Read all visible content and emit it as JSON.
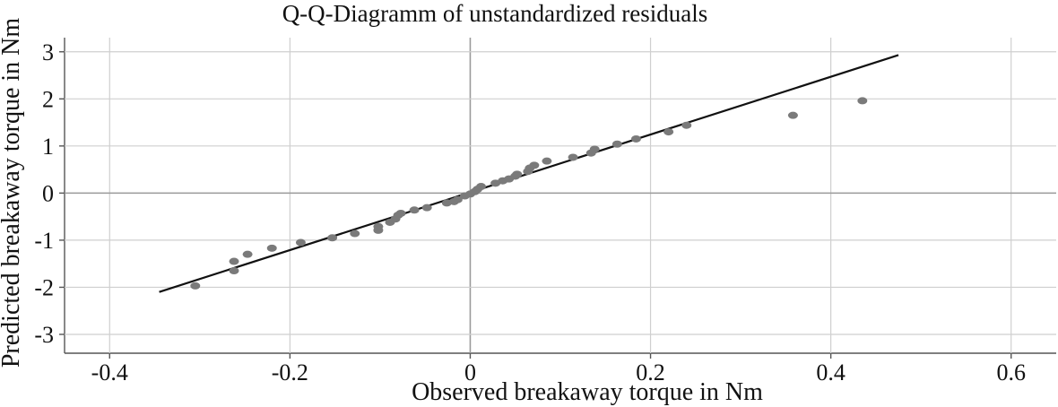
{
  "chart_data": {
    "type": "scatter",
    "title": "Q-Q-Diagramm of unstandardized residuals",
    "xlabel": "Observed breakaway torque in Nm",
    "ylabel": "Predicted breakaway torque in Nm",
    "xlim": [
      -0.45,
      0.65
    ],
    "ylim": [
      -3.4,
      3.3
    ],
    "x_ticks": [
      -0.4,
      -0.2,
      0,
      0.2,
      0.4,
      0.6
    ],
    "x_tick_labels": [
      "-0.4",
      "-0.2",
      "0",
      "0.2",
      "0.4",
      "0.6"
    ],
    "y_ticks": [
      3,
      2,
      1,
      0,
      -1,
      -2,
      -3
    ],
    "y_tick_labels": [
      "3",
      "2",
      "1",
      "0",
      "-1",
      "-2",
      "-3"
    ],
    "grid": true,
    "reference_line": {
      "x": [
        -0.345,
        0.475
      ],
      "y": [
        -2.1,
        2.93
      ]
    },
    "colors": {
      "points": "#7a7a7a",
      "line": "#111111",
      "grid": "#cfcfcf",
      "zero_axes": "#9a9a9a"
    },
    "series": [
      {
        "points": [
          [
            -0.305,
            -1.97
          ],
          [
            -0.262,
            -1.65
          ],
          [
            -0.262,
            -1.45
          ],
          [
            -0.247,
            -1.3
          ],
          [
            -0.22,
            -1.17
          ],
          [
            -0.188,
            -1.05
          ],
          [
            -0.153,
            -0.95
          ],
          [
            -0.128,
            -0.86
          ],
          [
            -0.102,
            -0.79
          ],
          [
            -0.102,
            -0.71
          ],
          [
            -0.089,
            -0.62
          ],
          [
            -0.083,
            -0.55
          ],
          [
            -0.08,
            -0.47
          ],
          [
            -0.077,
            -0.43
          ],
          [
            -0.062,
            -0.36
          ],
          [
            -0.048,
            -0.31
          ],
          [
            -0.026,
            -0.21
          ],
          [
            -0.018,
            -0.18
          ],
          [
            -0.014,
            -0.14
          ],
          [
            -0.006,
            -0.06
          ],
          [
            0.0,
            -0.02
          ],
          [
            0.005,
            0.03
          ],
          [
            0.008,
            0.08
          ],
          [
            0.012,
            0.14
          ],
          [
            0.028,
            0.21
          ],
          [
            0.036,
            0.26
          ],
          [
            0.043,
            0.3
          ],
          [
            0.05,
            0.36
          ],
          [
            0.052,
            0.4
          ],
          [
            0.064,
            0.46
          ],
          [
            0.066,
            0.53
          ],
          [
            0.071,
            0.59
          ],
          [
            0.085,
            0.68
          ],
          [
            0.114,
            0.76
          ],
          [
            0.134,
            0.85
          ],
          [
            0.138,
            0.93
          ],
          [
            0.163,
            1.04
          ],
          [
            0.184,
            1.15
          ],
          [
            0.22,
            1.3
          ],
          [
            0.24,
            1.44
          ],
          [
            0.358,
            1.65
          ],
          [
            0.435,
            1.96
          ]
        ]
      }
    ]
  }
}
